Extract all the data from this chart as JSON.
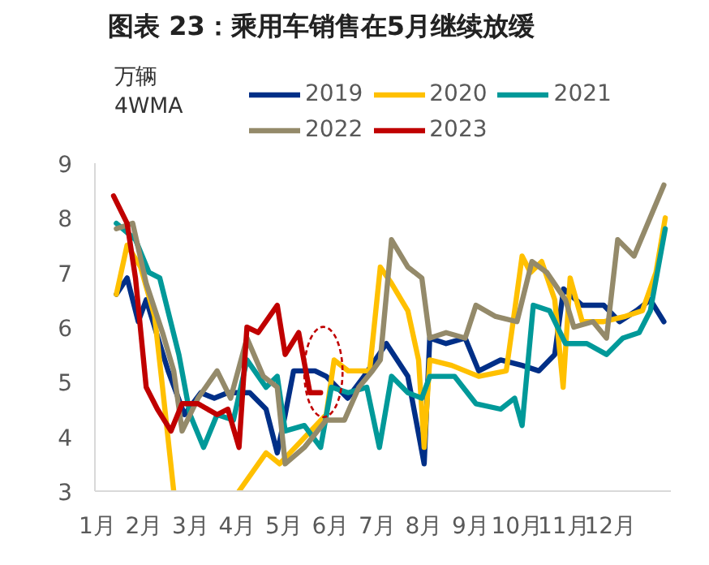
{
  "chart_data": {
    "type": "line",
    "title": "图表 23：乘用车销售在5月继续放缓",
    "ylabel": "万辆\n4WMA",
    "xlim": [
      0.95,
      13.3
    ],
    "xticks": [
      {
        "value": 1,
        "label": "1月"
      },
      {
        "value": 2,
        "label": "2月"
      },
      {
        "value": 3,
        "label": "3月"
      },
      {
        "value": 4,
        "label": "4月"
      },
      {
        "value": 5,
        "label": "5月"
      },
      {
        "value": 6,
        "label": "6月"
      },
      {
        "value": 7,
        "label": "7月"
      },
      {
        "value": 8,
        "label": "8月"
      },
      {
        "value": 9,
        "label": "9月"
      },
      {
        "value": 10,
        "label": "10月"
      },
      {
        "value": 11,
        "label": "11月"
      },
      {
        "value": 12,
        "label": "12月"
      }
    ],
    "ylim": [
      3,
      9
    ],
    "yticks": [
      3,
      4,
      5,
      6,
      7,
      8,
      9
    ],
    "grid": false,
    "legend": "top",
    "line_style": "solid",
    "series": [
      {
        "name": "2019",
        "color": "#002f87",
        "x": [
          1.41,
          1.64,
          1.88,
          2.05,
          2.52,
          2.87,
          3.22,
          3.51,
          3.8,
          4.27,
          4.62,
          4.86,
          5.03,
          5.21,
          5.67,
          5.91,
          6.14,
          6.37,
          6.72,
          7.2,
          7.66,
          8.01,
          8.13,
          8.48,
          8.89,
          9.18,
          9.65,
          10.11,
          10.47,
          10.81,
          11.0,
          11.4,
          11.86,
          12.2,
          12.56,
          12.86,
          13.15
        ],
        "values": [
          6.6,
          6.9,
          6.1,
          6.5,
          5.2,
          4.4,
          4.8,
          4.7,
          4.8,
          4.8,
          4.5,
          3.7,
          4.4,
          5.2,
          5.2,
          5.1,
          4.9,
          4.7,
          5.1,
          5.7,
          5.1,
          3.5,
          5.8,
          5.7,
          5.8,
          5.2,
          5.4,
          5.3,
          5.2,
          5.5,
          6.7,
          6.4,
          6.4,
          6.1,
          6.3,
          6.5,
          6.1
        ]
      },
      {
        "name": "2020",
        "color": "#ffc000",
        "x": [
          1.41,
          1.64,
          1.93,
          2.23,
          2.4,
          2.64,
          3.3,
          4.04,
          4.62,
          4.91,
          5.91,
          6.08,
          6.38,
          6.84,
          7.07,
          7.31,
          7.66,
          7.89,
          8.01,
          8.13,
          8.6,
          9.18,
          9.77,
          9.95,
          10.11,
          10.29,
          10.53,
          10.81,
          10.99,
          11.14,
          11.4,
          11.86,
          12.33,
          12.69,
          12.98,
          13.18
        ],
        "values": [
          6.6,
          7.5,
          7.1,
          6.2,
          4.9,
          3.0,
          null,
          3.0,
          3.7,
          3.5,
          4.4,
          5.4,
          5.2,
          5.2,
          7.1,
          6.8,
          6.3,
          5.4,
          3.8,
          5.4,
          5.3,
          5.1,
          5.2,
          6.3,
          7.3,
          7.0,
          7.2,
          6.5,
          4.9,
          6.9,
          6.1,
          6.1,
          6.2,
          6.3,
          7.0,
          8.0
        ]
      },
      {
        "name": "2021",
        "color": "#009999",
        "x": [
          1.41,
          1.82,
          2.11,
          2.34,
          2.75,
          2.99,
          3.28,
          3.57,
          3.92,
          4.21,
          4.62,
          4.86,
          5.03,
          5.44,
          5.79,
          6.02,
          6.38,
          6.78,
          7.05,
          7.31,
          7.66,
          7.96,
          8.13,
          8.66,
          9.12,
          9.65,
          9.95,
          10.11,
          10.35,
          10.7,
          11.04,
          11.5,
          11.92,
          12.27,
          12.62,
          12.86,
          13.18
        ],
        "values": [
          7.9,
          7.6,
          7.0,
          6.9,
          5.5,
          4.4,
          3.8,
          4.4,
          4.3,
          5.4,
          4.9,
          5.1,
          4.1,
          4.2,
          3.8,
          4.9,
          4.8,
          4.9,
          3.8,
          5.1,
          4.8,
          4.7,
          5.1,
          5.1,
          4.6,
          4.5,
          4.7,
          4.2,
          6.4,
          6.3,
          5.7,
          5.7,
          5.5,
          5.8,
          5.9,
          6.3,
          7.8
        ]
      },
      {
        "name": "2022",
        "color": "#948a6a",
        "x": [
          1.41,
          1.76,
          2.05,
          2.4,
          2.64,
          2.82,
          3.16,
          3.57,
          3.86,
          4.21,
          4.56,
          4.86,
          5.03,
          5.44,
          5.91,
          6.3,
          6.61,
          6.9,
          7.07,
          7.31,
          7.66,
          7.96,
          8.13,
          8.48,
          8.89,
          9.12,
          9.53,
          10.0,
          10.32,
          10.64,
          11.04,
          11.22,
          11.63,
          11.92,
          12.16,
          12.51,
          13.15
        ],
        "values": [
          7.8,
          7.9,
          6.8,
          5.9,
          5.2,
          4.1,
          4.7,
          5.2,
          4.7,
          5.8,
          5.1,
          4.9,
          3.5,
          3.8,
          4.3,
          4.3,
          4.9,
          5.2,
          5.4,
          7.6,
          7.1,
          6.9,
          5.8,
          5.9,
          5.8,
          6.4,
          6.2,
          6.1,
          7.2,
          7.0,
          6.5,
          6.0,
          6.1,
          5.8,
          7.6,
          7.3,
          8.6
        ]
      },
      {
        "name": "2023",
        "color": "#c00000",
        "x": [
          1.35,
          1.64,
          1.82,
          2.05,
          2.29,
          2.58,
          2.82,
          3.16,
          3.57,
          3.8,
          4.04,
          4.21,
          4.45,
          4.86,
          5.03,
          5.32,
          5.56,
          5.79
        ],
        "values": [
          8.4,
          7.9,
          6.9,
          4.9,
          4.5,
          4.1,
          4.6,
          4.6,
          4.4,
          4.5,
          3.8,
          6.0,
          5.9,
          6.4,
          5.5,
          5.9,
          4.8,
          4.8
        ]
      }
    ]
  }
}
